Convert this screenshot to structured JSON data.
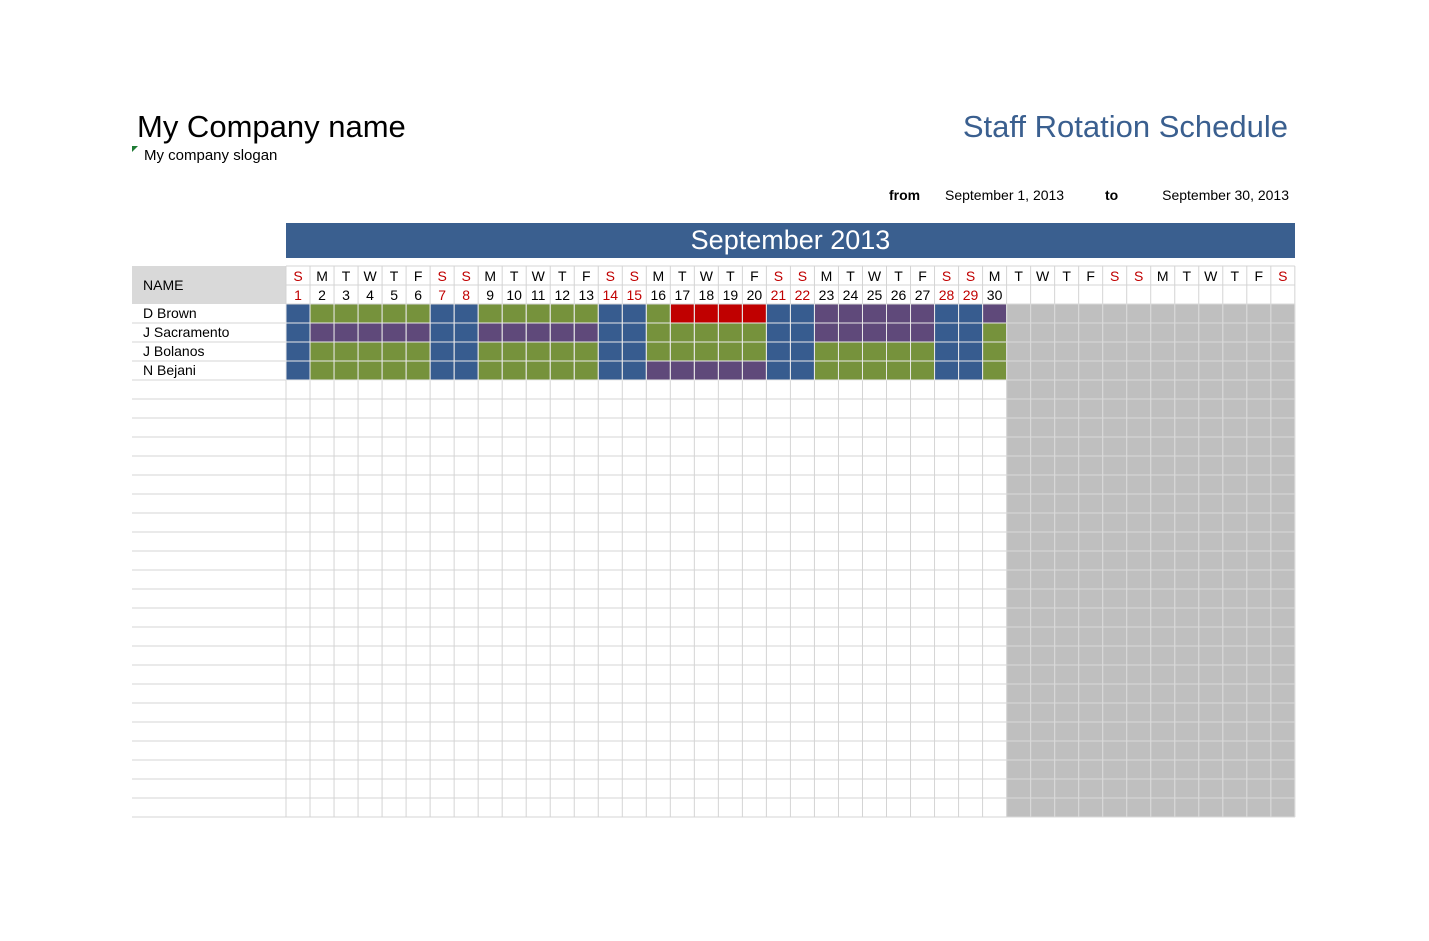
{
  "header": {
    "company_name": "My Company name",
    "slogan": "My company slogan",
    "title": "Staff Rotation Schedule",
    "from_label": "from",
    "from_date": "September 1, 2013",
    "to_label": "to",
    "to_date": "September 30, 2013"
  },
  "calendar": {
    "month_title": "September 2013",
    "name_header": "NAME",
    "day_letters": [
      "S",
      "M",
      "T",
      "W",
      "T",
      "F",
      "S",
      "S",
      "M",
      "T",
      "W",
      "T",
      "F",
      "S",
      "S",
      "M",
      "T",
      "W",
      "T",
      "F",
      "S",
      "S",
      "M",
      "T",
      "W",
      "T",
      "F",
      "S",
      "S",
      "M",
      "T",
      "W",
      "T",
      "F",
      "S",
      "S",
      "M",
      "T",
      "W",
      "T",
      "F",
      "S"
    ],
    "day_numbers": [
      1,
      2,
      3,
      4,
      5,
      6,
      7,
      8,
      9,
      10,
      11,
      12,
      13,
      14,
      15,
      16,
      17,
      18,
      19,
      20,
      21,
      22,
      23,
      24,
      25,
      26,
      27,
      28,
      29,
      30
    ],
    "blank_rows": 23
  },
  "colors": {
    "weekend": "#375c8f",
    "green": "#76923c",
    "purple": "#5f497a",
    "red": "#c00000",
    "weekend_text": "#c00000",
    "inactive": "#bfbfbf"
  },
  "staff": [
    {
      "name": "D Brown",
      "shifts": "BGGGGGBBGGGGGBBGRRRRBBPPPPPBBP"
    },
    {
      "name": "J Sacramento",
      "shifts": "BPPPPPBBPPPPPBBGGGGGBBPPPPPBBG"
    },
    {
      "name": "J Bolanos",
      "shifts": "BGGGGGBBGGGGGBBGGGGGBBGGGGGBBG"
    },
    {
      "name": "N Bejani",
      "shifts": "BGGGGGBBGGGGGBBPPPPPBBGGGGGBBG"
    }
  ]
}
